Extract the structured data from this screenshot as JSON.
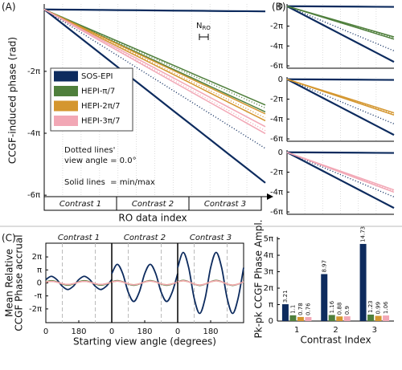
{
  "chart_data": [
    {
      "type": "line",
      "panel": "(A)",
      "xlabel": "RO data index",
      "ylabel": "CCGF-induced phase (rad)",
      "contrasts": [
        "Contrast 1",
        "Contrast 2",
        "Contrast 3"
      ],
      "ylim": [
        -19.0,
        0.55
      ],
      "yticks": [
        {
          "value": -6.283185,
          "label": "-2π"
        },
        {
          "value": -12.566371,
          "label": "-4π"
        },
        {
          "value": -18.849556,
          "label": "-6π"
        }
      ],
      "annotations": [
        "Dotted lines'",
        "view angle = 0.0°",
        "Solid lines  = min/max"
      ],
      "nro": {
        "text": "N",
        "sub": "RO"
      },
      "series": [
        {
          "name": "SOS-EPI",
          "color": "#0d2b5e",
          "min": [
            0,
            -1.47,
            -2.93,
            -4.4,
            -5.87,
            -7.33,
            -8.8,
            -10.27,
            -11.73,
            -13.2,
            -14.67,
            -16.13,
            -17.6
          ],
          "max": [
            0,
            -0.02,
            -0.03,
            -0.05,
            -0.07,
            -0.08,
            -0.1,
            -0.12,
            -0.13,
            -0.15,
            -0.17,
            -0.18,
            -0.2
          ],
          "values": [
            0,
            -1.18,
            -2.35,
            -3.53,
            -4.7,
            -5.88,
            -7.05,
            -8.23,
            -9.4,
            -10.58,
            -11.75,
            -12.93,
            -14.1
          ]
        },
        {
          "name": "HEPI-π/7",
          "color": "#4f7f3c",
          "min": [
            0,
            -0.87,
            -1.73,
            -2.6,
            -3.47,
            -4.33,
            -5.2,
            -6.07,
            -6.93,
            -7.8,
            -8.67,
            -9.53,
            -10.4
          ],
          "max": [
            0,
            -0.81,
            -1.62,
            -2.43,
            -3.23,
            -4.04,
            -4.85,
            -5.66,
            -6.47,
            -7.28,
            -8.08,
            -8.89,
            -9.7
          ],
          "values": [
            0,
            -0.83,
            -1.67,
            -2.5,
            -3.33,
            -4.17,
            -5,
            -5.83,
            -6.67,
            -7.5,
            -8.33,
            -9.17,
            -10
          ]
        },
        {
          "name": "HEPI-2π/7",
          "color": "#d4962f",
          "min": [
            0,
            -0.94,
            -1.88,
            -2.83,
            -3.77,
            -4.71,
            -5.65,
            -6.59,
            -7.53,
            -8.48,
            -9.42,
            -10.36,
            -11.3
          ],
          "max": [
            0,
            -0.88,
            -1.77,
            -2.65,
            -3.53,
            -4.42,
            -5.3,
            -6.18,
            -7.07,
            -7.95,
            -8.83,
            -9.72,
            -10.6
          ],
          "values": [
            0,
            -0.92,
            -1.83,
            -2.75,
            -3.67,
            -4.58,
            -5.5,
            -6.42,
            -7.33,
            -8.25,
            -9.17,
            -10.08,
            -11
          ]
        },
        {
          "name": "HEPI-3π/7",
          "color": "#f2a7b5",
          "min": [
            0,
            -1.05,
            -2.1,
            -3.15,
            -4.2,
            -5.25,
            -6.3,
            -7.35,
            -8.4,
            -9.45,
            -10.5,
            -11.55,
            -12.6
          ],
          "max": [
            0,
            -0.99,
            -1.98,
            -2.98,
            -3.97,
            -4.96,
            -5.95,
            -6.94,
            -7.93,
            -8.93,
            -9.92,
            -10.91,
            -11.9
          ],
          "values": [
            0,
            -1.03,
            -2.05,
            -3.08,
            -4.1,
            -5.13,
            -6.15,
            -7.18,
            -8.2,
            -9.23,
            -10.25,
            -11.28,
            -12.3
          ]
        }
      ]
    },
    {
      "type": "line",
      "panel": "(B)",
      "ylim": [
        -19.6,
        0.7
      ],
      "yticks": [
        0,
        {
          "value": -6.283185,
          "label": "-2π"
        },
        {
          "value": -12.566371,
          "label": "-4π"
        },
        {
          "value": -18.849556,
          "label": "-6π"
        }
      ],
      "series": [
        {
          "color": "#0d2b5e",
          "min": [
            0,
            -2.93,
            -5.87,
            -8.8,
            -11.73,
            -14.67,
            -17.6
          ],
          "max": [
            0,
            -0.03,
            -0.07,
            -0.1,
            -0.13,
            -0.17,
            -0.2
          ],
          "values": [
            0,
            -2.35,
            -4.7,
            -7.05,
            -9.4,
            -11.75,
            -14.1
          ]
        },
        {
          "color": "#4f7f3c",
          "min": [
            0,
            -1.73,
            -3.47,
            -5.2,
            -6.93,
            -8.67,
            -10.4
          ],
          "max": [
            0,
            -1.62,
            -3.23,
            -4.85,
            -6.47,
            -8.08,
            -9.7
          ],
          "values": [
            0,
            -1.67,
            -3.33,
            -5,
            -6.67,
            -8.33,
            -10
          ]
        }
      ]
    },
    {
      "type": "line",
      "ylim": [
        -19.6,
        0.7
      ],
      "yticks": [
        0,
        {
          "value": -6.283185,
          "label": "-2π"
        },
        {
          "value": -12.566371,
          "label": "-4π"
        },
        {
          "value": -18.849556,
          "label": "-6π"
        }
      ],
      "series": [
        {
          "color": "#0d2b5e",
          "min": [
            0,
            -2.93,
            -5.87,
            -8.8,
            -11.73,
            -14.67,
            -17.6
          ],
          "max": [
            0,
            -0.03,
            -0.07,
            -0.1,
            -0.13,
            -0.17,
            -0.2
          ],
          "values": [
            0,
            -2.35,
            -4.7,
            -7.05,
            -9.4,
            -11.75,
            -14.1
          ]
        },
        {
          "color": "#d4962f",
          "min": [
            0,
            -1.88,
            -3.77,
            -5.65,
            -7.53,
            -9.42,
            -11.3
          ],
          "max": [
            0,
            -1.77,
            -3.53,
            -5.3,
            -7.07,
            -8.83,
            -10.6
          ],
          "values": [
            0,
            -1.83,
            -3.67,
            -5.5,
            -7.33,
            -9.17,
            -11
          ]
        }
      ]
    },
    {
      "type": "line",
      "ylim": [
        -19.6,
        0.7
      ],
      "yticks": [
        0,
        {
          "value": -6.283185,
          "label": "-2π"
        },
        {
          "value": -12.566371,
          "label": "-4π"
        },
        {
          "value": -18.849556,
          "label": "-6π"
        }
      ],
      "series": [
        {
          "color": "#0d2b5e",
          "min": [
            0,
            -2.93,
            -5.87,
            -8.8,
            -11.73,
            -14.67,
            -17.6
          ],
          "max": [
            0,
            -0.03,
            -0.07,
            -0.1,
            -0.13,
            -0.17,
            -0.2
          ],
          "values": [
            0,
            -2.35,
            -4.7,
            -7.05,
            -9.4,
            -11.75,
            -14.1
          ]
        },
        {
          "color": "#f2a7b5",
          "min": [
            0,
            -2.1,
            -4.2,
            -6.3,
            -8.4,
            -10.5,
            -12.6
          ],
          "max": [
            0,
            -1.98,
            -3.97,
            -5.95,
            -7.93,
            -9.92,
            -11.9
          ],
          "values": [
            0,
            -2.05,
            -4.1,
            -6.15,
            -8.2,
            -10.25,
            -12.3
          ]
        }
      ]
    },
    {
      "type": "line",
      "panel": "(C)",
      "xlabel": "Starting view angle (degrees)",
      "ylabel": [
        "Mean Relative",
        "CCGF Phase accrual"
      ],
      "contrasts": [
        "Contrast 1",
        "Contrast 2",
        "Contrast 3"
      ],
      "x": [
        0,
        30,
        60,
        90,
        120,
        150,
        180,
        210,
        240,
        270,
        300,
        330,
        360
      ],
      "xlim": [
        0,
        360
      ],
      "xticks": [
        0,
        180
      ],
      "ylim": [
        -9.6,
        9.6
      ],
      "yticks": [
        {
          "value": 6.283185,
          "label": "2π"
        },
        {
          "value": 3.141593,
          "label": "π"
        },
        0,
        {
          "value": -3.141593,
          "label": "-π"
        },
        {
          "value": -6.283185,
          "label": "-2π"
        }
      ],
      "series": [
        {
          "color": "#0d2b5e",
          "values": [
            [
              0.8,
              1.6,
              0.8,
              -0.8,
              -1.6,
              -0.8,
              0.8,
              1.6,
              0.8,
              -0.8,
              -1.6,
              -0.8,
              0.8
            ],
            [
              2.25,
              4.49,
              2.25,
              -2.25,
              -4.49,
              -2.25,
              2.25,
              4.49,
              2.25,
              -2.25,
              -4.49,
              -2.25,
              2.25
            ],
            [
              3.69,
              7.37,
              3.69,
              -3.69,
              -7.37,
              -3.69,
              3.69,
              7.37,
              3.69,
              -3.69,
              -7.37,
              -3.69,
              3.69
            ]
          ]
        },
        {
          "color": "#4f7f3c",
          "values": [
            [
              0.28,
              0.55,
              0.28,
              -0.28,
              -0.55,
              -0.28,
              0.28,
              0.55,
              0.28,
              -0.28,
              -0.55,
              -0.28,
              0.28
            ],
            [
              0.29,
              0.58,
              0.29,
              -0.29,
              -0.58,
              -0.29,
              0.29,
              0.58,
              0.29,
              -0.29,
              -0.58,
              -0.29,
              0.29
            ],
            [
              0.31,
              0.62,
              0.31,
              -0.31,
              -0.62,
              -0.31,
              0.31,
              0.62,
              0.31,
              -0.31,
              -0.62,
              -0.31,
              0.31
            ]
          ]
        },
        {
          "color": "#d4962f",
          "values": [
            [
              0.2,
              0.39,
              0.2,
              -0.2,
              -0.39,
              -0.2,
              0.2,
              0.39,
              0.2,
              -0.2,
              -0.39,
              -0.2,
              0.2
            ],
            [
              0.22,
              0.44,
              0.22,
              -0.22,
              -0.44,
              -0.22,
              0.22,
              0.44,
              0.22,
              -0.22,
              -0.44,
              -0.22,
              0.22
            ],
            [
              0.25,
              0.5,
              0.25,
              -0.25,
              -0.5,
              -0.25,
              0.25,
              0.5,
              0.25,
              -0.25,
              -0.5,
              -0.25,
              0.25
            ]
          ]
        },
        {
          "color": "#f2a7b5",
          "values": [
            [
              0.19,
              0.38,
              0.19,
              -0.19,
              -0.38,
              -0.19,
              0.19,
              0.38,
              0.19,
              -0.19,
              -0.38,
              -0.19,
              0.19
            ],
            [
              0.23,
              0.45,
              0.23,
              -0.23,
              -0.45,
              -0.23,
              0.23,
              0.45,
              0.23,
              -0.23,
              -0.45,
              -0.23,
              0.23
            ],
            [
              0.27,
              0.53,
              0.27,
              -0.27,
              -0.53,
              -0.27,
              0.27,
              0.53,
              0.27,
              -0.27,
              -0.53,
              -0.27,
              0.27
            ]
          ]
        }
      ]
    },
    {
      "type": "bar",
      "xlabel": "Contrast Index",
      "ylabel": "Pk-pk CCGF Phase Ampl.",
      "categories": [
        "1",
        "2",
        "3"
      ],
      "ylim": [
        0,
        16.1
      ],
      "yticks": [
        0,
        {
          "value": 3.141593,
          "label": "π"
        },
        {
          "value": 6.283185,
          "label": "2π"
        },
        {
          "value": 9.424778,
          "label": "3π"
        },
        {
          "value": 12.566371,
          "label": "4π"
        },
        {
          "value": 15.707963,
          "label": "5π"
        }
      ],
      "series": [
        {
          "color": "#0d2b5e",
          "values": [
            3.21,
            8.97,
            14.73
          ]
        },
        {
          "color": "#4f7f3c",
          "values": [
            1.1,
            1.16,
            1.23
          ]
        },
        {
          "color": "#d4962f",
          "values": [
            0.78,
            0.88,
            0.99
          ]
        },
        {
          "color": "#f2a7b5",
          "values": [
            0.76,
            0.9,
            1.06
          ]
        }
      ]
    }
  ]
}
